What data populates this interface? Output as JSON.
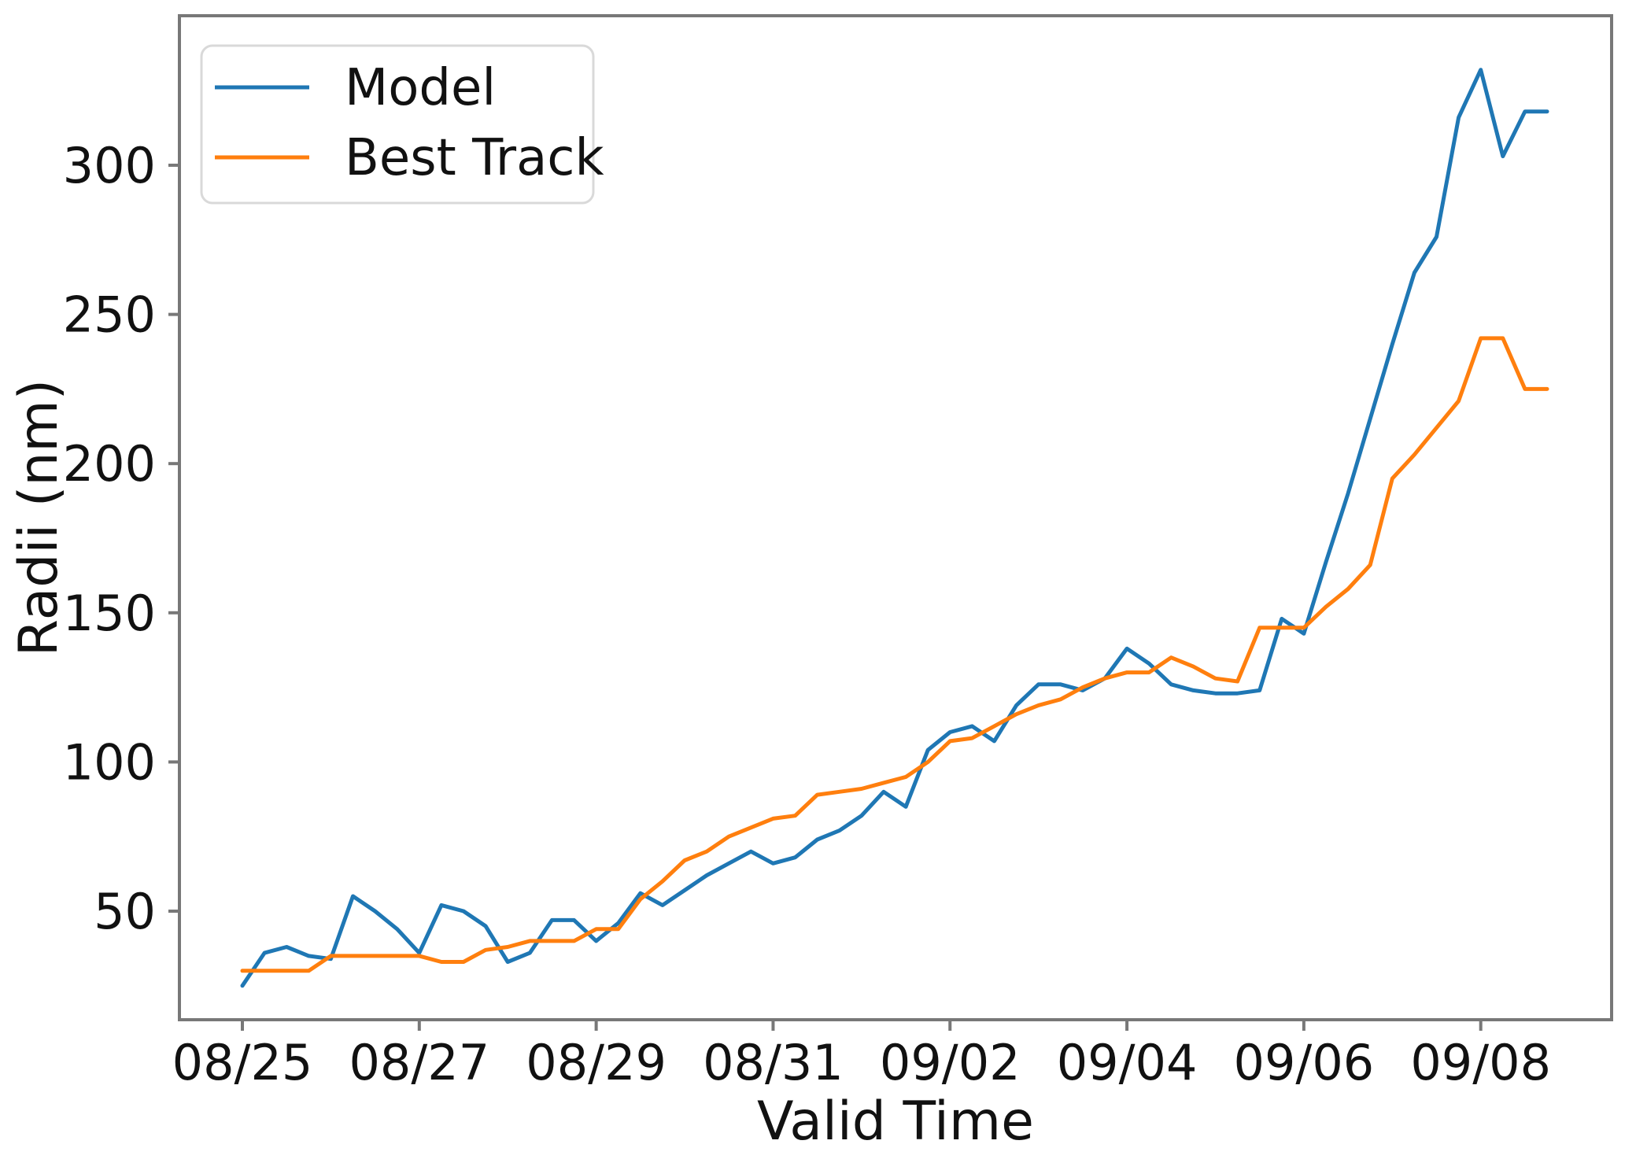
{
  "figure": {
    "background": "#ffffff",
    "spine_color": "#787878"
  },
  "chart_data": {
    "type": "line",
    "title": "",
    "xlabel": "Valid Time",
    "ylabel": "Radii (nm)",
    "grid": false,
    "legend": {
      "position": "upper-left",
      "entries": [
        "Model",
        "Best Track"
      ]
    },
    "axes": {
      "ylim": [
        14,
        350
      ],
      "yticks": [
        50,
        100,
        150,
        200,
        250,
        300
      ],
      "xtick_labels": [
        "08/25",
        "08/27",
        "08/29",
        "08/31",
        "09/02",
        "09/04",
        "09/06",
        "09/08"
      ],
      "xtick_indices": [
        0,
        8,
        16,
        24,
        32,
        40,
        48,
        56
      ]
    },
    "x": [
      "08/25 00Z",
      "08/25 06Z",
      "08/25 12Z",
      "08/25 18Z",
      "08/26 00Z",
      "08/26 06Z",
      "08/26 12Z",
      "08/26 18Z",
      "08/27 00Z",
      "08/27 06Z",
      "08/27 12Z",
      "08/27 18Z",
      "08/28 00Z",
      "08/28 06Z",
      "08/28 12Z",
      "08/28 18Z",
      "08/29 00Z",
      "08/29 06Z",
      "08/29 12Z",
      "08/29 18Z",
      "08/30 00Z",
      "08/30 06Z",
      "08/30 12Z",
      "08/30 18Z",
      "08/31 00Z",
      "08/31 06Z",
      "08/31 12Z",
      "08/31 18Z",
      "09/01 00Z",
      "09/01 06Z",
      "09/01 12Z",
      "09/01 18Z",
      "09/02 00Z",
      "09/02 06Z",
      "09/02 12Z",
      "09/02 18Z",
      "09/03 00Z",
      "09/03 06Z",
      "09/03 12Z",
      "09/03 18Z",
      "09/04 00Z",
      "09/04 06Z",
      "09/04 12Z",
      "09/04 18Z",
      "09/05 00Z",
      "09/05 06Z",
      "09/05 12Z",
      "09/05 18Z",
      "09/06 00Z",
      "09/06 06Z",
      "09/06 12Z",
      "09/06 18Z",
      "09/07 00Z",
      "09/07 06Z",
      "09/07 12Z",
      "09/07 18Z",
      "09/08 00Z",
      "09/08 06Z",
      "09/08 12Z",
      "09/08 18Z"
    ],
    "series": [
      {
        "name": "Model",
        "color": "#1f77b4",
        "values": [
          25,
          36,
          38,
          35,
          34,
          55,
          50,
          44,
          36,
          52,
          50,
          45,
          33,
          36,
          47,
          47,
          40,
          46,
          56,
          52,
          57,
          62,
          66,
          70,
          66,
          68,
          74,
          77,
          82,
          90,
          85,
          104,
          110,
          112,
          107,
          119,
          126,
          126,
          124,
          128,
          138,
          133,
          126,
          124,
          123,
          123,
          124,
          148,
          143,
          167,
          190,
          215,
          240,
          264,
          276,
          316,
          332,
          303,
          318,
          318
        ]
      },
      {
        "name": "Best Track",
        "color": "#ff7f0e",
        "values": [
          30,
          30,
          30,
          30,
          35,
          35,
          35,
          35,
          35,
          33,
          33,
          37,
          38,
          40,
          40,
          40,
          44,
          44,
          54,
          60,
          67,
          70,
          75,
          78,
          81,
          82,
          89,
          90,
          91,
          93,
          95,
          100,
          107,
          108,
          112,
          116,
          119,
          121,
          125,
          128,
          130,
          130,
          135,
          132,
          128,
          127,
          145,
          145,
          145,
          152,
          158,
          166,
          195,
          203,
          212,
          221,
          242,
          242,
          225,
          225
        ]
      }
    ]
  }
}
